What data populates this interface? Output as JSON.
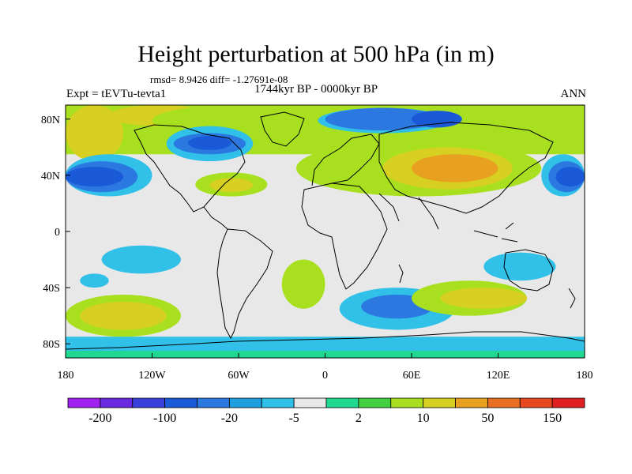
{
  "title": "Height perturbation at 500 hPa (in m)",
  "stats": "rmsd= 8.9426  diff= -1.27691e-08",
  "period": "1744kyr BP - 0000kyr BP",
  "experiment": "Expt = tEVTu-tevta1",
  "season": "ANN",
  "map": {
    "lon_range": [
      -180,
      180
    ],
    "lat_range": [
      -90,
      90
    ],
    "x_ticks": [
      {
        "value": -180,
        "label": "180"
      },
      {
        "value": -120,
        "label": "120W"
      },
      {
        "value": -60,
        "label": "60W"
      },
      {
        "value": 0,
        "label": "0"
      },
      {
        "value": 60,
        "label": "60E"
      },
      {
        "value": 120,
        "label": "120E"
      },
      {
        "value": 180,
        "label": "180"
      }
    ],
    "y_ticks": [
      {
        "value": 80,
        "label": "80N"
      },
      {
        "value": 40,
        "label": "40N"
      },
      {
        "value": 0,
        "label": "0"
      },
      {
        "value": -40,
        "label": "40S"
      },
      {
        "value": -80,
        "label": "80S"
      }
    ],
    "background_color": "#e8e8e8",
    "coastline_color": "#000000",
    "fields": [
      {
        "lon_range": [
          -180,
          180
        ],
        "lat_range": [
          55,
          90
        ],
        "level": 10
      },
      {
        "lon_range": [
          -180,
          -140
        ],
        "lat_range": [
          50,
          90
        ],
        "level": 50
      },
      {
        "lon_range": [
          -150,
          -80
        ],
        "lat_range": [
          75,
          90
        ],
        "level": 50
      },
      {
        "lon_range": [
          -120,
          0
        ],
        "lat_range": [
          68,
          90
        ],
        "level": 10
      },
      {
        "lon_range": [
          -30,
          70
        ],
        "lat_range": [
          60,
          90
        ],
        "level": 10
      },
      {
        "lon_range": [
          100,
          180
        ],
        "lat_range": [
          65,
          90
        ],
        "level": 10
      },
      {
        "lon_range": [
          -180,
          -120
        ],
        "lat_range": [
          25,
          55
        ],
        "level": -5
      },
      {
        "lon_range": [
          -180,
          -130
        ],
        "lat_range": [
          28,
          50
        ],
        "level": -20
      },
      {
        "lon_range": [
          -180,
          -140
        ],
        "lat_range": [
          32,
          46
        ],
        "level": -100
      },
      {
        "lon_range": [
          -110,
          -50
        ],
        "lat_range": [
          50,
          75
        ],
        "level": -5
      },
      {
        "lon_range": [
          -105,
          -55
        ],
        "lat_range": [
          55,
          70
        ],
        "level": -20
      },
      {
        "lon_range": [
          -95,
          -65
        ],
        "lat_range": [
          58,
          68
        ],
        "level": -100
      },
      {
        "lon_range": [
          -5,
          85
        ],
        "lat_range": [
          70,
          88
        ],
        "level": -5
      },
      {
        "lon_range": [
          0,
          80
        ],
        "lat_range": [
          72,
          88
        ],
        "level": -20
      },
      {
        "lon_range": [
          60,
          95
        ],
        "lat_range": [
          74,
          86
        ],
        "level": -100
      },
      {
        "lon_range": [
          -20,
          150
        ],
        "lat_range": [
          25,
          65
        ],
        "level": 10
      },
      {
        "lon_range": [
          40,
          130
        ],
        "lat_range": [
          30,
          60
        ],
        "level": 50
      },
      {
        "lon_range": [
          60,
          120
        ],
        "lat_range": [
          35,
          55
        ],
        "level": 150
      },
      {
        "lon_range": [
          -90,
          -40
        ],
        "lat_range": [
          25,
          42
        ],
        "level": 10
      },
      {
        "lon_range": [
          -80,
          -50
        ],
        "lat_range": [
          28,
          38
        ],
        "level": 50
      },
      {
        "lon_range": [
          150,
          180
        ],
        "lat_range": [
          25,
          55
        ],
        "level": -5
      },
      {
        "lon_range": [
          155,
          180
        ],
        "lat_range": [
          28,
          50
        ],
        "level": -20
      },
      {
        "lon_range": [
          160,
          180
        ],
        "lat_range": [
          32,
          46
        ],
        "level": -100
      },
      {
        "lon_range": [
          -180,
          -100
        ],
        "lat_range": [
          -75,
          -45
        ],
        "level": 10
      },
      {
        "lon_range": [
          -170,
          -110
        ],
        "lat_range": [
          -70,
          -50
        ],
        "level": 50
      },
      {
        "lon_range": [
          -155,
          -100
        ],
        "lat_range": [
          -30,
          -10
        ],
        "level": -5
      },
      {
        "lon_range": [
          -170,
          -150
        ],
        "lat_range": [
          -40,
          -30
        ],
        "level": -5
      },
      {
        "lon_range": [
          -30,
          0
        ],
        "lat_range": [
          -55,
          -20
        ],
        "level": 10
      },
      {
        "lon_range": [
          10,
          90
        ],
        "lat_range": [
          -70,
          -40
        ],
        "level": -5
      },
      {
        "lon_range": [
          25,
          75
        ],
        "lat_range": [
          -62,
          -45
        ],
        "level": -20
      },
      {
        "lon_range": [
          60,
          140
        ],
        "lat_range": [
          -60,
          -35
        ],
        "level": 10
      },
      {
        "lon_range": [
          80,
          140
        ],
        "lat_range": [
          -55,
          -40
        ],
        "level": 50
      },
      {
        "lon_range": [
          110,
          160
        ],
        "lat_range": [
          -35,
          -15
        ],
        "level": -5
      },
      {
        "lon_range": [
          -180,
          180
        ],
        "lat_range": [
          -90,
          -75
        ],
        "level": 2
      },
      {
        "lon_range": [
          -180,
          180
        ],
        "lat_range": [
          -85,
          -75
        ],
        "level": -5
      }
    ]
  },
  "colorbar": {
    "labels": [
      "-200",
      "-100",
      "-20",
      "-5",
      "2",
      "10",
      "50",
      "150"
    ],
    "colors": [
      "#a020f0",
      "#6a28e0",
      "#3a40dc",
      "#1a5ad8",
      "#2a78e0",
      "#1ea0e0",
      "#30c0e8",
      "#e8e8e8",
      "#20d890",
      "#40d040",
      "#a8e020",
      "#d8d020",
      "#e8a020",
      "#e87020",
      "#e84820",
      "#e02020"
    ]
  },
  "level_colors": {
    "-100": "#1a5ad8",
    "-20": "#2a78e0",
    "-5": "#30c0e8",
    "2": "#20d890",
    "10": "#a8e020",
    "50": "#d8d020",
    "150": "#e8a020"
  }
}
